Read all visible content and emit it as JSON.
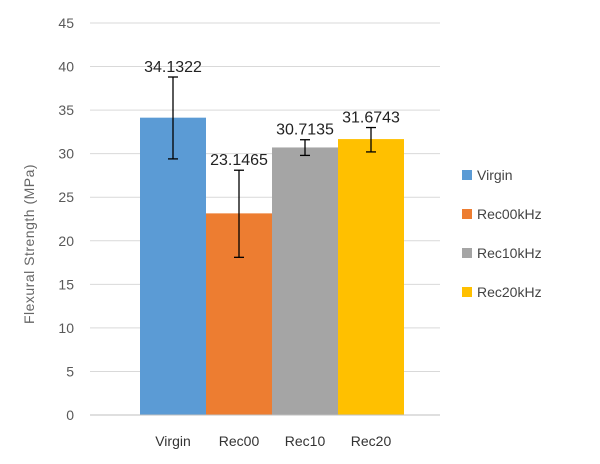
{
  "chart_data": {
    "type": "bar",
    "categories": [
      "Virgin",
      "Rec00",
      "Rec10",
      "Rec20"
    ],
    "values": [
      34.1322,
      23.1465,
      30.7135,
      31.6743
    ],
    "data_labels": [
      "34.1322",
      "23.1465",
      "30.7135",
      "31.6743"
    ],
    "error_bars": [
      {
        "low": 29.4,
        "high": 38.8
      },
      {
        "low": 18.1,
        "high": 28.1
      },
      {
        "low": 29.8,
        "high": 31.6
      },
      {
        "low": 30.2,
        "high": 33.0
      }
    ],
    "colors": [
      "#5B9BD5",
      "#ED7D31",
      "#A5A5A5",
      "#FFC000"
    ],
    "legend": [
      "Virgin",
      "Rec00kHz",
      "Rec10kHz",
      "Rec20kHz"
    ],
    "legend_position": "right",
    "ylabel": "Flexural  Strength  (MPa)",
    "xlabel": "",
    "ylim": [
      0,
      45
    ],
    "yticks": [
      "0",
      "5",
      "10",
      "15",
      "20",
      "25",
      "30",
      "35",
      "40",
      "45"
    ],
    "grid": true
  }
}
